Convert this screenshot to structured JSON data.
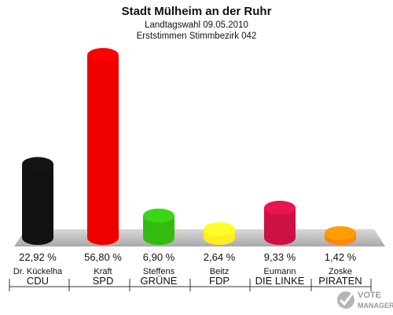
{
  "chart_data": {
    "type": "bar",
    "title": "Stadt Mülheim an der Ruhr",
    "subtitle1": "Landtagswahl 09.05.2010",
    "subtitle2": "Erststimmen Stimmbezirk 042",
    "categories": [
      "CDU",
      "SPD",
      "GRÜNE",
      "FDP",
      "DIE LINKE",
      "PIRATEN"
    ],
    "candidates": [
      "Dr. Kückelha",
      "Kraft",
      "Steffens",
      "Beitz",
      "Eumann",
      "Zoske"
    ],
    "values": [
      22.92,
      56.8,
      6.9,
      2.64,
      9.33,
      1.42
    ],
    "value_labels": [
      "22,92 %",
      "56,80 %",
      "6,90 %",
      "2,64 %",
      "9,33 %",
      "1,42 %"
    ],
    "colors": [
      "#111111",
      "#ee0000",
      "#33bb11",
      "#ffee22",
      "#cc1144",
      "#ff8800"
    ],
    "ylim": [
      0,
      60
    ],
    "grid": false,
    "legend": "none"
  },
  "logo": {
    "line1": "VOTE",
    "line2": "MANAGER"
  }
}
